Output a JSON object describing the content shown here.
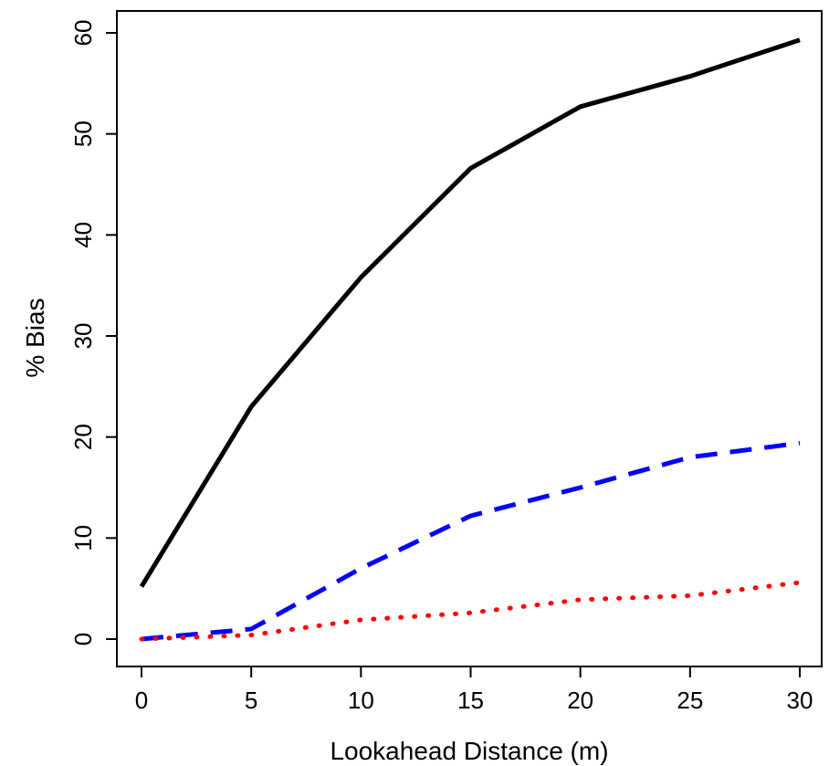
{
  "chart_data": {
    "type": "line",
    "title": "",
    "xlabel": "Lookahead Distance (m)",
    "ylabel": "% Bias",
    "xlim": [
      0,
      30
    ],
    "ylim": [
      0,
      60
    ],
    "x_ticks": [
      0,
      5,
      10,
      15,
      20,
      25,
      30
    ],
    "y_ticks": [
      0,
      10,
      20,
      30,
      40,
      50,
      60
    ],
    "grid": false,
    "legend": "none",
    "x": [
      0,
      5,
      10,
      15,
      20,
      25,
      30
    ],
    "series": [
      {
        "values": [
          5.2,
          23.0,
          35.8,
          46.6,
          52.7,
          55.7,
          59.3
        ],
        "style": "solid",
        "color": "#000000"
      },
      {
        "values": [
          0.0,
          1.0,
          7.0,
          12.2,
          15.0,
          18.0,
          19.4
        ],
        "style": "dashed",
        "color": "#0000ff"
      },
      {
        "values": [
          0.0,
          0.4,
          1.9,
          2.6,
          3.9,
          4.3,
          5.6
        ],
        "style": "dotted",
        "color": "#ff0000"
      }
    ]
  }
}
